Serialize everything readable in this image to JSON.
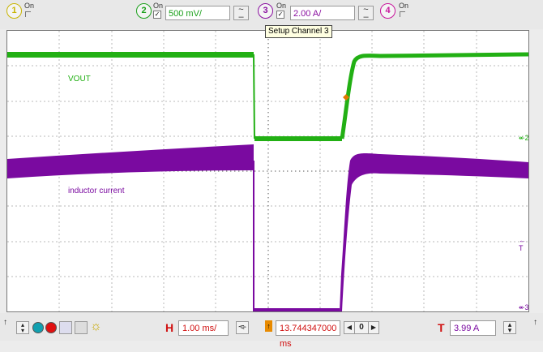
{
  "channels": [
    {
      "num": "1",
      "state": "On",
      "color": "#d8c400",
      "checked": false
    },
    {
      "num": "2",
      "state": "On",
      "color": "#1aa01a",
      "checked": true,
      "scale": "500 mV/",
      "coupling": "~"
    },
    {
      "num": "3",
      "state": "On",
      "color": "#8a0fa0",
      "checked": true,
      "scale": "2.00 A/",
      "coupling": "~"
    },
    {
      "num": "4",
      "state": "On",
      "color": "#c8159c",
      "checked": false
    }
  ],
  "tooltip": "Setup Channel 3",
  "traces": {
    "vout_label": "VOUT",
    "current_label": "inductor current",
    "vout_color": "#22b014",
    "current_color": "#7a0aa0"
  },
  "markers": {
    "ch2": "2",
    "trig": "T",
    "ch3": "3"
  },
  "bottom": {
    "h_label": "H",
    "timebase": "1.00 ms/",
    "delay": "13.744347000 ms",
    "delay_nav": "0",
    "t_label": "T",
    "trigger_level": "3.99 A"
  },
  "icons": [
    "stop-circle-icon",
    "run-circle-icon",
    "capture-icon",
    "print-icon",
    "brightness-icon"
  ]
}
